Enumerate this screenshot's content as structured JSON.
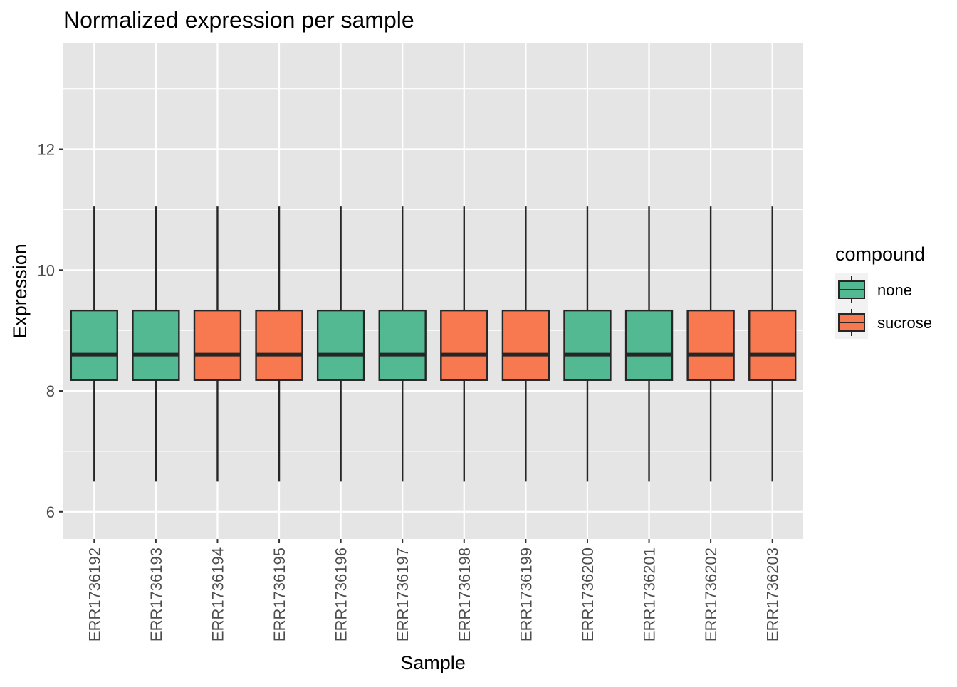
{
  "chart_data": {
    "type": "boxplot",
    "title": "Normalized expression per sample",
    "xlabel": "Sample",
    "ylabel": "Expression",
    "ylim": [
      5.55,
      13.75
    ],
    "yticks": [
      6,
      8,
      10,
      12
    ],
    "grid": true,
    "legend": {
      "title": "compound",
      "placement": "right",
      "entries": [
        {
          "label": "none",
          "color": "#52B993"
        },
        {
          "label": "sucrose",
          "color": "#F8794F"
        }
      ]
    },
    "categories": [
      "ERR1736192",
      "ERR1736193",
      "ERR1736194",
      "ERR1736195",
      "ERR1736196",
      "ERR1736197",
      "ERR1736198",
      "ERR1736199",
      "ERR1736200",
      "ERR1736201",
      "ERR1736202",
      "ERR1736203"
    ],
    "boxes": [
      {
        "sample": "ERR1736192",
        "compound": "none",
        "min": 6.5,
        "q1": 8.18,
        "median": 8.6,
        "q3": 9.33,
        "max": 11.05
      },
      {
        "sample": "ERR1736193",
        "compound": "none",
        "min": 6.5,
        "q1": 8.18,
        "median": 8.6,
        "q3": 9.33,
        "max": 11.05
      },
      {
        "sample": "ERR1736194",
        "compound": "sucrose",
        "min": 6.5,
        "q1": 8.18,
        "median": 8.6,
        "q3": 9.33,
        "max": 11.05
      },
      {
        "sample": "ERR1736195",
        "compound": "sucrose",
        "min": 6.5,
        "q1": 8.18,
        "median": 8.6,
        "q3": 9.33,
        "max": 11.05
      },
      {
        "sample": "ERR1736196",
        "compound": "none",
        "min": 6.5,
        "q1": 8.18,
        "median": 8.6,
        "q3": 9.33,
        "max": 11.05
      },
      {
        "sample": "ERR1736197",
        "compound": "none",
        "min": 6.5,
        "q1": 8.18,
        "median": 8.6,
        "q3": 9.33,
        "max": 11.05
      },
      {
        "sample": "ERR1736198",
        "compound": "sucrose",
        "min": 6.5,
        "q1": 8.18,
        "median": 8.6,
        "q3": 9.33,
        "max": 11.05
      },
      {
        "sample": "ERR1736199",
        "compound": "sucrose",
        "min": 6.5,
        "q1": 8.18,
        "median": 8.6,
        "q3": 9.33,
        "max": 11.05
      },
      {
        "sample": "ERR1736200",
        "compound": "none",
        "min": 6.5,
        "q1": 8.18,
        "median": 8.6,
        "q3": 9.33,
        "max": 11.05
      },
      {
        "sample": "ERR1736201",
        "compound": "none",
        "min": 6.5,
        "q1": 8.18,
        "median": 8.6,
        "q3": 9.33,
        "max": 11.05
      },
      {
        "sample": "ERR1736202",
        "compound": "sucrose",
        "min": 6.5,
        "q1": 8.18,
        "median": 8.6,
        "q3": 9.33,
        "max": 11.05
      },
      {
        "sample": "ERR1736203",
        "compound": "sucrose",
        "min": 6.5,
        "q1": 8.18,
        "median": 8.6,
        "q3": 9.33,
        "max": 11.05
      }
    ],
    "colors": {
      "panel_background": "#E5E5E5",
      "grid": "#FFFFFF",
      "outline": "#262626",
      "axis_text": "#4D4D4D",
      "text": "#000000"
    }
  }
}
